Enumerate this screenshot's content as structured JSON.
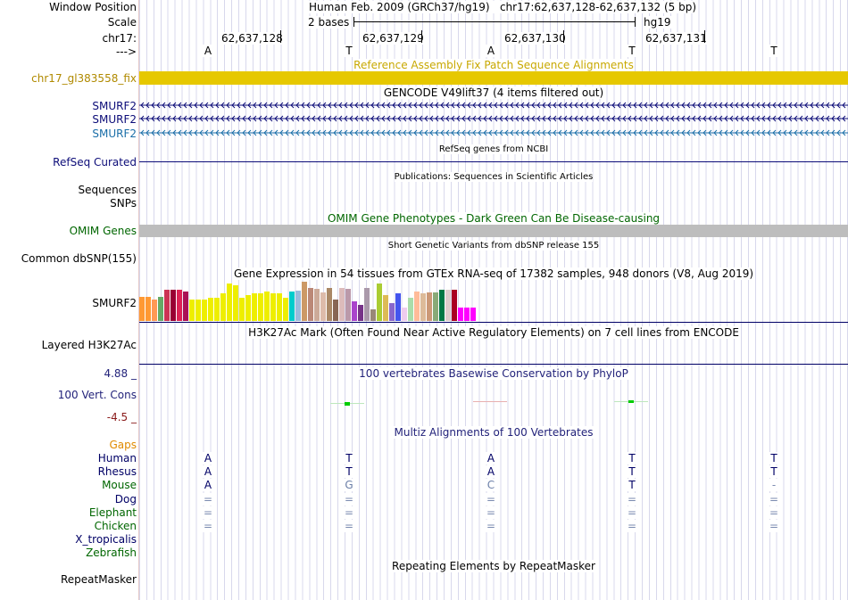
{
  "header": {
    "window_position_label": "Window Position",
    "window_position_value": "Human Feb. 2009 (GRCh37/hg19)   chr17:62,637,128-62,637,132 (5 bp)",
    "scale_label": "Scale",
    "scale_value": "2 bases",
    "scale_assembly": "hg19",
    "chrom_label": "chr17:",
    "strand_label": "--->",
    "positions": [
      "62,637,128",
      "62,637,129",
      "62,637,130",
      "62,637,131"
    ],
    "bases": [
      "A",
      "T",
      "A",
      "T",
      "T"
    ]
  },
  "tracks": {
    "fix_patch": {
      "title": "Reference Assembly Fix Patch Sequence Alignments",
      "label": "chr17_gl383558_fix",
      "color": "#e6c800"
    },
    "gencode": {
      "title": "GENCODE V49lift37 (4 items filtered out)",
      "labels": [
        "SMURF2",
        "SMURF2",
        "SMURF2"
      ]
    },
    "refseq": {
      "title": "RefSeq genes from NCBI",
      "label": "RefSeq Curated"
    },
    "publications": {
      "title": "Publications: Sequences in Scientific Articles",
      "labels": [
        "Sequences",
        "SNPs"
      ]
    },
    "omim": {
      "title": "OMIM Gene Phenotypes - Dark Green Can Be Disease-causing",
      "label": "OMIM Genes"
    },
    "dbsnp": {
      "title": "Short Genetic Variants from dbSNP release 155",
      "label": "Common dbSNP(155)"
    },
    "gtex": {
      "title": "Gene Expression in 54 tissues from GTEx RNA-seq of 17382 samples, 948 donors (V8, Aug 2019)",
      "label": "SMURF2",
      "colors": [
        "#ff9933",
        "#ff9933",
        "#ff9955",
        "#66aa66",
        "#cc3355",
        "#990033",
        "#dd2255",
        "#aa1155",
        "#eeee00",
        "#eeee00",
        "#eeee00",
        "#eeee00",
        "#eeee00",
        "#eeee00",
        "#eeee00",
        "#eeee00",
        "#eeee00",
        "#eeee00",
        "#eeee00",
        "#eeee00",
        "#eeee00",
        "#eeee00",
        "#eeee00",
        "#eeee00",
        "#00cccc",
        "#99bbdd",
        "#cc9966",
        "#bb8877",
        "#ccaa99",
        "#ddbbaa",
        "#aa8866",
        "#886655",
        "#ddbbbb",
        "#bb99aa",
        "#aa44cc",
        "#773388",
        "#aa99aa",
        "#998877",
        "#aacc33",
        "#ddbb55",
        "#8866cc",
        "#4455ee",
        "#eeccee",
        "#aaddaa",
        "#ffbb99",
        "#ddbb99",
        "#cc9977",
        "#88aa77",
        "#007744",
        "#ddcccc",
        "#aa0022",
        "#ff00ff",
        "#ff00ff",
        "#ff00ff"
      ],
      "values": [
        0.62,
        0.62,
        0.55,
        0.62,
        0.8,
        0.8,
        0.8,
        0.75,
        0.55,
        0.55,
        0.55,
        0.6,
        0.6,
        0.7,
        0.95,
        0.9,
        0.6,
        0.65,
        0.7,
        0.7,
        0.75,
        0.7,
        0.7,
        0.6,
        0.75,
        0.78,
        1.0,
        0.85,
        0.82,
        0.72,
        0.85,
        0.55,
        0.85,
        0.82,
        0.5,
        0.4,
        0.85,
        0.3,
        0.95,
        0.65,
        0.45,
        0.7,
        0.35,
        0.6,
        0.75,
        0.7,
        0.72,
        0.72,
        0.8,
        0.8,
        0.8,
        0.35,
        0.35,
        0.35
      ]
    },
    "h3k27ac": {
      "title": "H3K27Ac Mark (Often Found Near Active Regulatory Elements) on 7 cell lines from ENCODE",
      "label": "Layered H3K27Ac"
    },
    "cons": {
      "title": "100 vertebrates Basewise Conservation by PhyloP",
      "label": "100 Vert. Cons",
      "max": "4.88 _",
      "min": "-4.5 _"
    },
    "multiz": {
      "title": "Multiz Alignments of 100 Vertebrates",
      "gaps_label": "Gaps",
      "species": [
        {
          "name": "Human",
          "color": "#000066",
          "bases": [
            "A",
            "T",
            "A",
            "T",
            "T"
          ]
        },
        {
          "name": "Rhesus",
          "color": "#000066",
          "bases": [
            "A",
            "T",
            "A",
            "T",
            "T"
          ]
        },
        {
          "name": "Mouse",
          "color": "#006600",
          "bases": [
            "A",
            "G",
            "C",
            "T",
            "-"
          ]
        },
        {
          "name": "Dog",
          "color": "#000066",
          "bases": [
            "=",
            "=",
            "=",
            "=",
            "="
          ]
        },
        {
          "name": "Elephant",
          "color": "#006600",
          "bases": [
            "=",
            "=",
            "=",
            "=",
            "="
          ]
        },
        {
          "name": "Chicken",
          "color": "#006600",
          "bases": [
            "=",
            "=",
            "=",
            "=",
            "="
          ]
        },
        {
          "name": "X_tropicalis",
          "color": "#000066",
          "bases": []
        },
        {
          "name": "Zebrafish",
          "color": "#006600",
          "bases": []
        }
      ]
    },
    "repeatmasker": {
      "title": "Repeating Elements by RepeatMasker",
      "label": "RepeatMasker"
    }
  }
}
